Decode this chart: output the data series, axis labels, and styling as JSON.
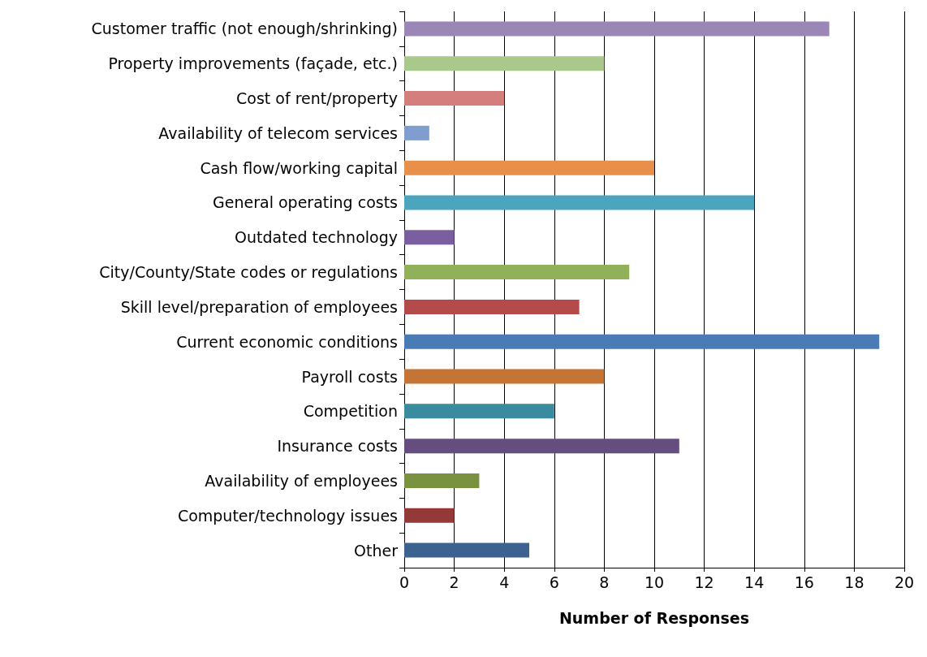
{
  "chart_data": {
    "type": "bar",
    "orientation": "horizontal",
    "xlabel": "Number of Responses",
    "categories": [
      "Customer traffic (not enough/shrinking)",
      "Property improvements (façade, etc.)",
      "Cost of rent/property",
      "Availability of telecom services",
      "Cash flow/working capital",
      "General operating costs",
      "Outdated technology",
      "City/County/State codes or regulations",
      "Skill level/preparation of employees",
      "Current economic conditions",
      "Payroll costs",
      "Competition",
      "Insurance costs",
      "Availability of employees",
      "Computer/technology issues",
      "Other"
    ],
    "values": [
      17,
      8,
      4,
      1,
      10,
      14,
      2,
      9,
      7,
      19,
      8,
      6,
      11,
      3,
      2,
      5
    ],
    "colors": [
      "#9a87b5",
      "#a9c98a",
      "#d47f7e",
      "#7f9dcf",
      "#e8904a",
      "#4ba5bf",
      "#7b5ea0",
      "#91b05a",
      "#b44b4a",
      "#4a7bb4",
      "#c47535",
      "#3a8b9d",
      "#664d80",
      "#78923f",
      "#953838",
      "#3c6291"
    ],
    "xlim": [
      0,
      20
    ],
    "xticks": [
      0,
      2,
      4,
      6,
      8,
      10,
      12,
      14,
      16,
      18,
      20
    ],
    "grid": "x"
  }
}
